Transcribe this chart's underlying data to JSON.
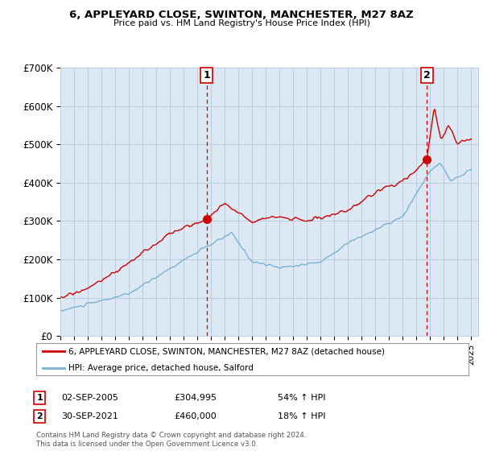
{
  "title": "6, APPLEYARD CLOSE, SWINTON, MANCHESTER, M27 8AZ",
  "subtitle": "Price paid vs. HM Land Registry's House Price Index (HPI)",
  "ylim": [
    0,
    700000
  ],
  "yticks": [
    0,
    100000,
    200000,
    300000,
    400000,
    500000,
    600000,
    700000
  ],
  "ytick_labels": [
    "£0",
    "£100K",
    "£200K",
    "£300K",
    "£400K",
    "£500K",
    "£600K",
    "£700K"
  ],
  "xlim_left": 1995,
  "xlim_right": 2025.5,
  "line1_color": "#cc0000",
  "line2_color": "#7ab0d4",
  "vline_color": "#cc0000",
  "chart_bg": "#dce9f5",
  "point1_x": 2005.67,
  "point1_y": 304995,
  "point2_x": 2021.75,
  "point2_y": 460000,
  "legend_line1": "6, APPLEYARD CLOSE, SWINTON, MANCHESTER, M27 8AZ (detached house)",
  "legend_line2": "HPI: Average price, detached house, Salford",
  "annotation1_date": "02-SEP-2005",
  "annotation1_price": "£304,995",
  "annotation1_hpi": "54% ↑ HPI",
  "annotation2_date": "30-SEP-2021",
  "annotation2_price": "£460,000",
  "annotation2_hpi": "18% ↑ HPI",
  "footnote": "Contains HM Land Registry data © Crown copyright and database right 2024.\nThis data is licensed under the Open Government Licence v3.0.",
  "background_color": "#ffffff",
  "grid_color": "#bbccdd"
}
